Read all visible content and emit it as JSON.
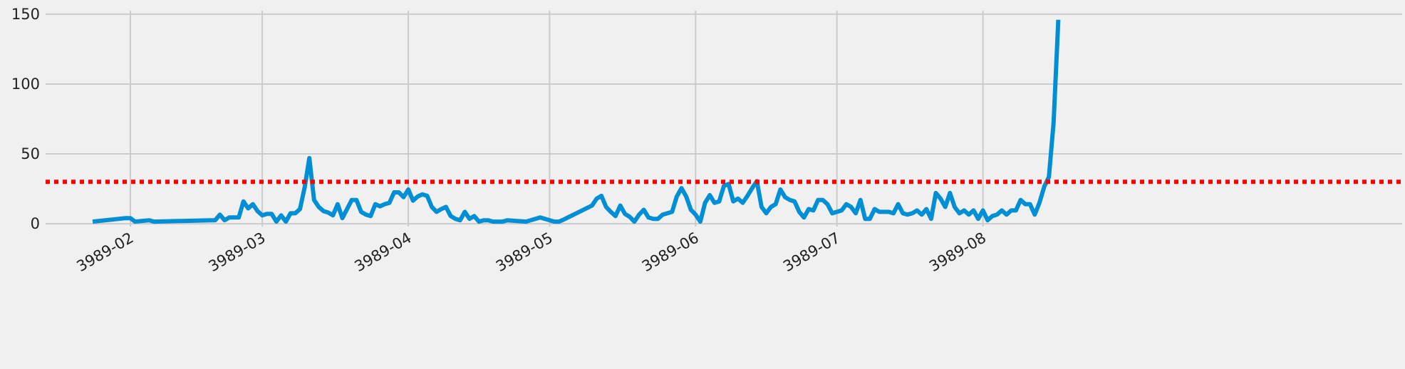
{
  "chart_data": {
    "type": "line",
    "x": [
      24,
      31,
      32,
      33,
      36,
      37,
      49,
      50,
      51,
      52,
      53,
      55,
      56,
      57,
      58,
      59,
      60,
      61,
      62,
      63,
      64,
      65,
      66,
      67,
      68,
      69,
      70,
      71,
      72,
      73,
      74,
      75,
      76,
      77,
      78,
      79,
      80,
      81,
      82,
      83,
      84,
      85,
      86,
      87,
      88,
      89,
      90,
      91,
      92,
      93,
      94,
      95,
      96,
      97,
      98,
      99,
      100,
      101,
      102,
      103,
      104,
      105,
      106,
      107,
      108,
      109,
      111,
      112,
      116,
      119,
      122,
      123,
      124,
      130,
      131,
      132,
      133,
      134,
      135,
      136,
      137,
      138,
      139,
      140,
      141,
      142,
      143,
      144,
      145,
      146,
      147,
      148,
      149,
      150,
      151,
      152,
      153,
      154,
      155,
      156,
      157,
      158,
      159,
      160,
      161,
      162,
      163,
      164,
      165,
      166,
      167,
      168,
      169,
      170,
      171,
      172,
      173,
      174,
      175,
      176,
      177,
      178,
      179,
      180,
      181,
      182,
      183,
      184,
      185,
      186,
      187,
      188,
      189,
      190,
      191,
      192,
      193,
      194,
      195,
      196,
      197,
      198,
      199,
      200,
      201,
      202,
      203,
      204,
      205,
      206,
      207,
      208,
      209,
      210,
      211,
      212,
      213,
      214,
      215,
      216,
      217,
      218,
      219,
      220,
      221,
      222,
      223,
      224,
      225,
      226,
      227,
      228,
      229
    ],
    "values": [
      1.5,
      4,
      4,
      1.5,
      2.5,
      1.5,
      2.5,
      2.5,
      6.5,
      2.5,
      4.5,
      4.5,
      16,
      11,
      14,
      9,
      6,
      7,
      7,
      1.5,
      6,
      1.5,
      7.5,
      7.5,
      10.5,
      26,
      47,
      17,
      12,
      9,
      8,
      6,
      14,
      4,
      10.5,
      17,
      17,
      8.5,
      6.5,
      5.5,
      14,
      12.5,
      14,
      15,
      22.5,
      22.5,
      19,
      24.5,
      16.5,
      19.5,
      21,
      20,
      12,
      8.5,
      10.5,
      12,
      5.5,
      3.5,
      2.5,
      8.5,
      3.5,
      5.5,
      1.5,
      2.5,
      2.5,
      1.5,
      1.5,
      2.5,
      1.5,
      4.5,
      1.5,
      1.5,
      3,
      13,
      18,
      20,
      12,
      8.5,
      5.5,
      13,
      7,
      5,
      1.5,
      6.5,
      10,
      4.5,
      3.5,
      3.5,
      6.5,
      7.5,
      8.5,
      19.5,
      25.5,
      19.5,
      10,
      6.5,
      1.5,
      15,
      20.5,
      15,
      16,
      27,
      28.5,
      16,
      18,
      15,
      20,
      25.5,
      30.5,
      12,
      7.5,
      12,
      14,
      24.5,
      19,
      17,
      16,
      8.5,
      4.5,
      10.5,
      9.5,
      17,
      17,
      14,
      7.5,
      8.5,
      9.5,
      14,
      12,
      7.5,
      17,
      3.5,
      3.5,
      10.5,
      8.5,
      8.5,
      8.5,
      7.5,
      14,
      7.5,
      6.5,
      7.5,
      9.5,
      6.5,
      10.5,
      3.5,
      22,
      18,
      12,
      22,
      12,
      7.5,
      9.5,
      6.5,
      9.5,
      3.5,
      9.5,
      2.5,
      5.5,
      6.5,
      9.5,
      6.5,
      9.5,
      9.5,
      17,
      14,
      14,
      6.5,
      15,
      26.5,
      33.5,
      72.5,
      146
    ],
    "color": "#008fd5",
    "hline": {
      "value": 30,
      "color": "#ff0000"
    },
    "xlim": [
      14,
      302
    ],
    "xticks": [
      {
        "value": 32,
        "label": "3989-02"
      },
      {
        "value": 60,
        "label": "3989-03"
      },
      {
        "value": 91,
        "label": "3989-04"
      },
      {
        "value": 121,
        "label": "3989-05"
      },
      {
        "value": 152,
        "label": "3989-06"
      },
      {
        "value": 182,
        "label": "3989-07"
      },
      {
        "value": 213,
        "label": "3989-08"
      }
    ],
    "ylim": [
      -2,
      152.5
    ],
    "yticks": [
      0,
      50,
      100,
      150
    ],
    "grid": true
  }
}
